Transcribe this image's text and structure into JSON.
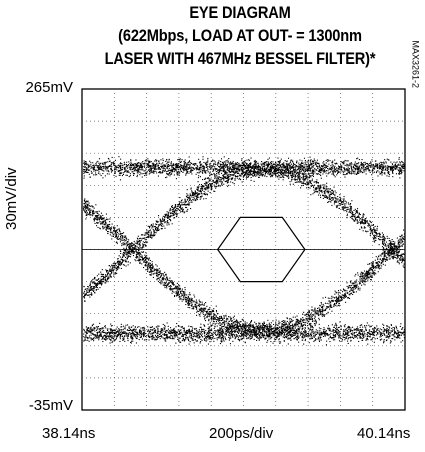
{
  "chart_data": {
    "type": "eye-diagram",
    "title": [
      "EYE DIAGRAM",
      "(622Mbps, LOAD AT OUT- = 1300nm",
      "LASER WITH 467MHz BESSEL FILTER)*"
    ],
    "ylabel": "30mV/div",
    "xlabel": "200ps/div",
    "ytick_top": "265mV",
    "ytick_bottom": "-35mV",
    "xtick_left": "38.14ns",
    "xtick_right": "40.14ns",
    "part_number": "MAX3261-2",
    "xlim_ns": [
      38.14,
      40.14
    ],
    "ylim_mv": [
      -35,
      265
    ],
    "x_divisions": 10,
    "y_divisions": 10,
    "grid": true,
    "grid_style": "dotted",
    "logic_high_mv": 190,
    "logic_low_mv": 40,
    "crossing_times_ns": [
      38.45,
      40.06
    ],
    "eye_center_ns": 39.25,
    "eye_center_mv": 115,
    "mask_hexagon": {
      "time_ns": [
        38.98,
        39.12,
        39.38,
        39.52
      ],
      "voltage_mv": [
        85,
        115,
        145
      ]
    }
  }
}
